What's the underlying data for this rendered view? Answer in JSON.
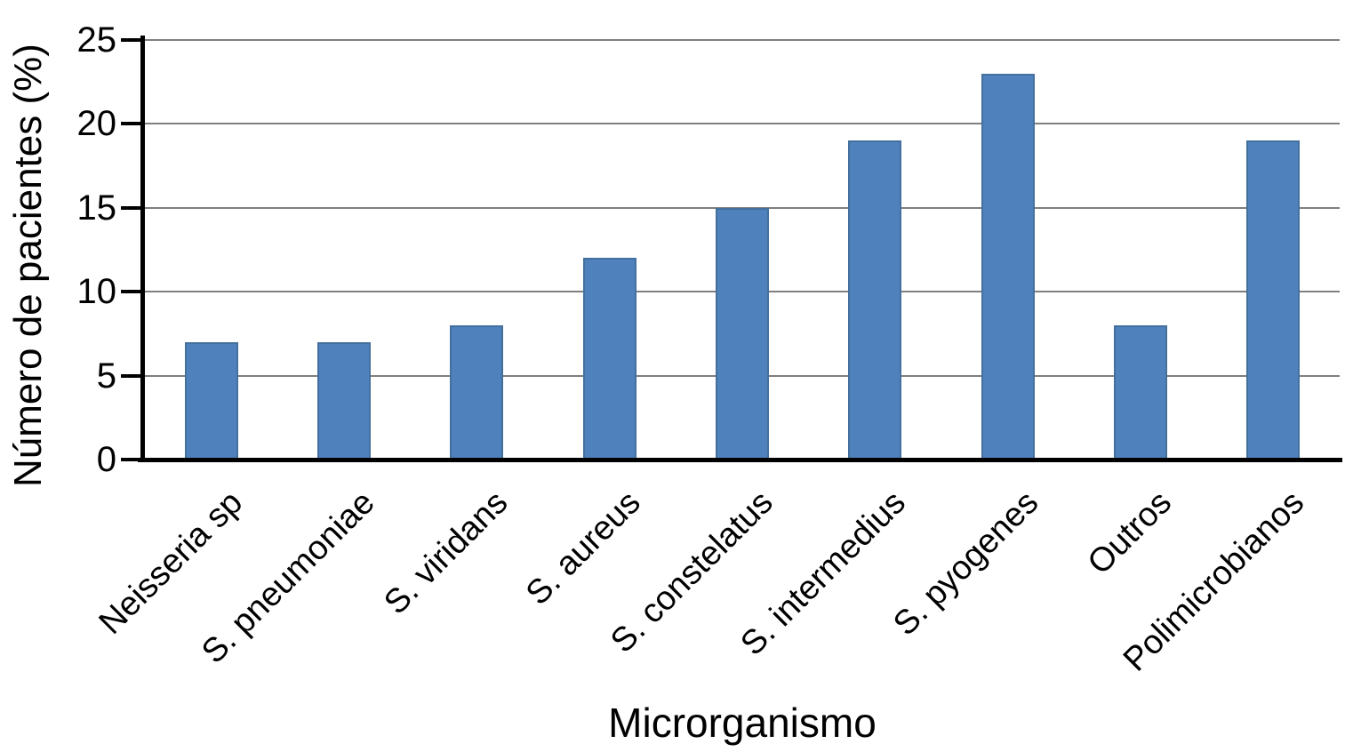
{
  "chart_data": {
    "type": "bar",
    "title": "",
    "xlabel": "Microrganismo",
    "ylabel": "Número de pacientes (%)",
    "categories": [
      "Neisseria sp",
      "S. pneumoniae",
      "S. viridans",
      "S. aureus",
      "S. constelatus",
      "S. intermedius",
      "S. pyogenes",
      "Outros",
      "Polimicrobianos"
    ],
    "values": [
      7,
      7,
      8,
      12,
      15,
      19,
      23,
      8,
      19
    ],
    "ylim": [
      0,
      25
    ],
    "yticks": [
      0,
      5,
      10,
      15,
      20,
      25
    ],
    "grid": "horizontal-only",
    "legend": "none",
    "colors": {
      "bar_fill": "#4F81BD",
      "bar_border": "#44709D",
      "gridline": "#7F7F7F",
      "axis": "#000000",
      "text": "#000000",
      "background": "#FFFFFF"
    }
  }
}
